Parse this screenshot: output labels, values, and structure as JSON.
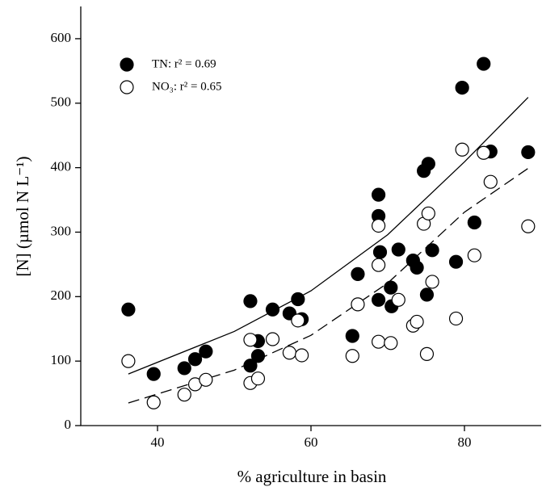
{
  "chart_data": {
    "type": "scatter",
    "x_label": "% agriculture in basin",
    "y_label": "[N] (µmol N L⁻¹)",
    "xlim": [
      30,
      90
    ],
    "ylim": [
      0,
      650
    ],
    "xticks": [
      40,
      60,
      80
    ],
    "yticks": [
      0,
      100,
      200,
      300,
      400,
      500,
      600
    ],
    "legend": "upper left",
    "series": [
      {
        "name": "TN: r² = 0.69",
        "color": "#000000",
        "filled": true,
        "x": [
          36.2,
          39.5,
          43.5,
          44.9,
          46.3,
          52.1,
          52.1,
          53.1,
          53.1,
          55.0,
          57.2,
          58.3,
          58.8,
          65.4,
          66.1,
          68.8,
          68.8,
          69.0,
          68.8,
          70.4,
          70.5,
          71.4,
          73.3,
          73.8,
          75.1,
          74.7,
          75.3,
          75.8,
          78.9,
          79.7,
          81.3,
          82.5,
          83.4,
          88.3
        ],
        "values": [
          180,
          80,
          89,
          103,
          115,
          93,
          193,
          131,
          108,
          180,
          174,
          196,
          165,
          139,
          235,
          358,
          325,
          269,
          195,
          214,
          185,
          273,
          256,
          245,
          203,
          395,
          406,
          272,
          254,
          524,
          315,
          561,
          425,
          424
        ]
      },
      {
        "name": "NO₃: r² = 0.65",
        "color": "#000000",
        "filled": false,
        "x": [
          36.2,
          39.5,
          43.5,
          44.9,
          46.3,
          52.1,
          52.1,
          53.1,
          55.0,
          57.2,
          58.3,
          58.8,
          65.4,
          66.1,
          68.8,
          68.8,
          68.8,
          70.4,
          71.4,
          73.3,
          73.8,
          74.7,
          75.3,
          75.1,
          75.8,
          78.9,
          79.7,
          81.3,
          82.5,
          83.4,
          88.3
        ],
        "values": [
          100,
          36,
          48,
          64,
          71,
          133,
          66,
          73,
          134,
          113,
          163,
          109,
          108,
          188,
          310,
          249,
          130,
          128,
          195,
          155,
          161,
          313,
          329,
          111,
          223,
          166,
          428,
          264,
          423,
          378,
          309
        ]
      }
    ],
    "fits": [
      {
        "dashed": false,
        "x": [
          36.2,
          50,
          60,
          70,
          80,
          88.3
        ],
        "y": [
          80,
          146,
          209,
          296,
          409,
          509
        ]
      },
      {
        "dashed": true,
        "x": [
          36.2,
          50,
          60,
          70,
          80,
          88.3
        ],
        "y": [
          35,
          86,
          140,
          221,
          331,
          399
        ]
      }
    ]
  }
}
